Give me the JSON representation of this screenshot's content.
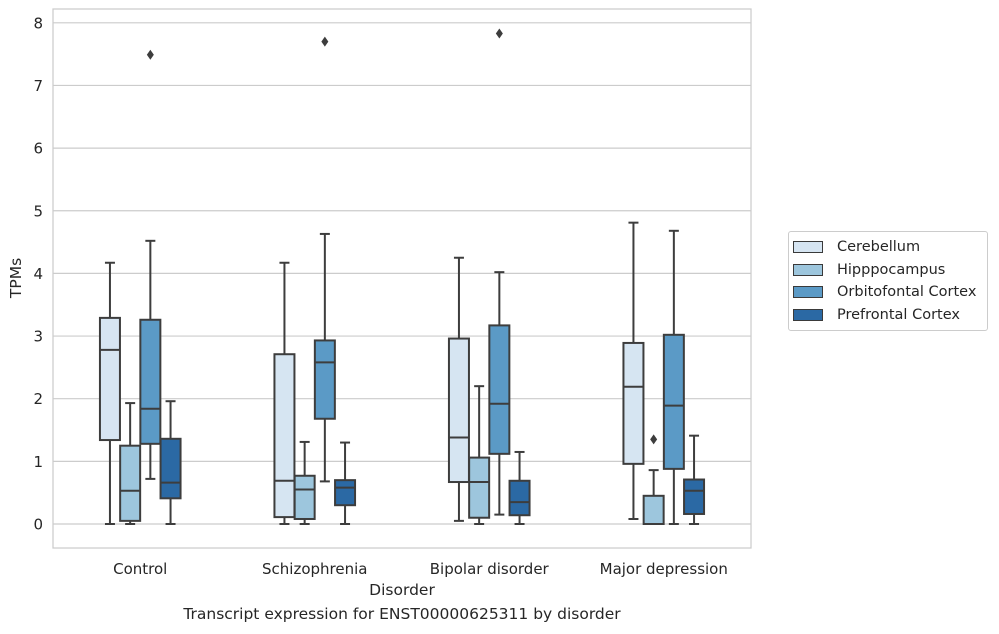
{
  "caption": "Transcript expression for ENST00000625311 by disorder",
  "chart_data": {
    "type": "boxplot",
    "xlabel": "Disorder",
    "ylabel": "TPMs",
    "ylim": [
      -0.38,
      8.2
    ],
    "yticks": [
      0,
      1,
      2,
      3,
      4,
      5,
      6,
      7,
      8
    ],
    "grid": true,
    "legend_position": "right",
    "categories": [
      "Control",
      "Schizophrenia",
      "Bipolar disorder",
      "Major depression"
    ],
    "series": [
      {
        "name": "Cerebellum",
        "color": "#d6e5f2",
        "boxes": [
          {
            "min": 0.0,
            "q1": 1.34,
            "median": 2.78,
            "q3": 3.29,
            "max": 4.17,
            "outliers": []
          },
          {
            "min": 0.0,
            "q1": 0.11,
            "median": 0.69,
            "q3": 2.71,
            "max": 4.17,
            "outliers": []
          },
          {
            "min": 0.05,
            "q1": 0.67,
            "median": 1.38,
            "q3": 2.96,
            "max": 4.25,
            "outliers": []
          },
          {
            "min": 0.08,
            "q1": 0.96,
            "median": 2.19,
            "q3": 2.89,
            "max": 4.81,
            "outliers": []
          }
        ]
      },
      {
        "name": "Hipppocampus",
        "color": "#9dc6dd",
        "boxes": [
          {
            "min": 0.0,
            "q1": 0.05,
            "median": 0.53,
            "q3": 1.25,
            "max": 1.93,
            "outliers": []
          },
          {
            "min": 0.0,
            "q1": 0.08,
            "median": 0.55,
            "q3": 0.77,
            "max": 1.31,
            "outliers": []
          },
          {
            "min": 0.0,
            "q1": 0.1,
            "median": 0.67,
            "q3": 1.06,
            "max": 2.2,
            "outliers": []
          },
          {
            "min": 0.0,
            "q1": 0.0,
            "median": 0.0,
            "q3": 0.45,
            "max": 0.86,
            "outliers": [
              1.35
            ]
          }
        ]
      },
      {
        "name": "Orbitofontal Cortex",
        "color": "#5b9ac6",
        "boxes": [
          {
            "min": 0.72,
            "q1": 1.28,
            "median": 1.84,
            "q3": 3.26,
            "max": 4.52,
            "outliers": [
              7.49
            ]
          },
          {
            "min": 0.68,
            "q1": 1.68,
            "median": 2.58,
            "q3": 2.93,
            "max": 4.63,
            "outliers": [
              7.7
            ]
          },
          {
            "min": 0.15,
            "q1": 1.12,
            "median": 1.92,
            "q3": 3.17,
            "max": 4.02,
            "outliers": [
              7.83
            ]
          },
          {
            "min": 0.0,
            "q1": 0.88,
            "median": 1.89,
            "q3": 3.02,
            "max": 4.68,
            "outliers": []
          }
        ]
      },
      {
        "name": "Prefrontal Cortex",
        "color": "#2b69a4",
        "boxes": [
          {
            "min": 0.0,
            "q1": 0.41,
            "median": 0.66,
            "q3": 1.36,
            "max": 1.96,
            "outliers": []
          },
          {
            "min": 0.0,
            "q1": 0.3,
            "median": 0.58,
            "q3": 0.7,
            "max": 1.3,
            "outliers": []
          },
          {
            "min": 0.0,
            "q1": 0.14,
            "median": 0.35,
            "q3": 0.69,
            "max": 1.15,
            "outliers": []
          },
          {
            "min": 0.0,
            "q1": 0.16,
            "median": 0.53,
            "q3": 0.71,
            "max": 1.41,
            "outliers": []
          }
        ]
      }
    ]
  }
}
